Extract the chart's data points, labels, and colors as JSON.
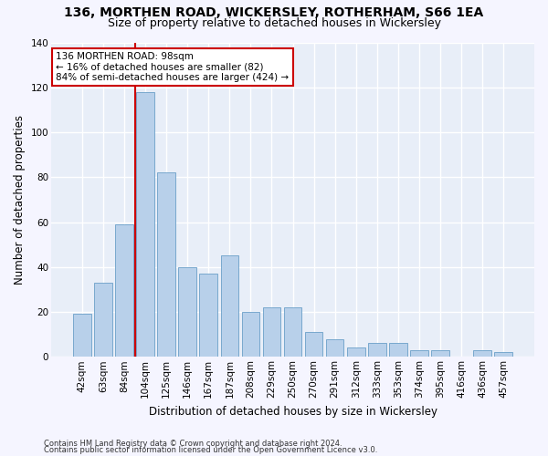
{
  "title1": "136, MORTHEN ROAD, WICKERSLEY, ROTHERHAM, S66 1EA",
  "title2": "Size of property relative to detached houses in Wickersley",
  "xlabel": "Distribution of detached houses by size in Wickersley",
  "ylabel": "Number of detached properties",
  "categories": [
    "42sqm",
    "63sqm",
    "84sqm",
    "104sqm",
    "125sqm",
    "146sqm",
    "167sqm",
    "187sqm",
    "208sqm",
    "229sqm",
    "250sqm",
    "270sqm",
    "291sqm",
    "312sqm",
    "333sqm",
    "353sqm",
    "374sqm",
    "395sqm",
    "416sqm",
    "436sqm",
    "457sqm"
  ],
  "values": [
    19,
    33,
    59,
    118,
    82,
    40,
    37,
    45,
    20,
    22,
    22,
    11,
    8,
    4,
    6,
    6,
    3,
    3,
    0,
    3,
    2
  ],
  "bar_color": "#b8d0ea",
  "bar_edge_color": "#6a9fc8",
  "vline_color": "#cc0000",
  "annotation_text": "136 MORTHEN ROAD: 98sqm\n← 16% of detached houses are smaller (82)\n84% of semi-detached houses are larger (424) →",
  "annotation_box_color": "#ffffff",
  "annotation_box_edge_color": "#cc0000",
  "ylim": [
    0,
    140
  ],
  "yticks": [
    0,
    20,
    40,
    60,
    80,
    100,
    120,
    140
  ],
  "footer1": "Contains HM Land Registry data © Crown copyright and database right 2024.",
  "footer2": "Contains public sector information licensed under the Open Government Licence v3.0.",
  "bg_color": "#e8eef8",
  "grid_color": "#ffffff",
  "title1_fontsize": 10,
  "title2_fontsize": 9,
  "xlabel_fontsize": 8.5,
  "ylabel_fontsize": 8.5,
  "tick_fontsize": 7.5,
  "footer_fontsize": 6
}
